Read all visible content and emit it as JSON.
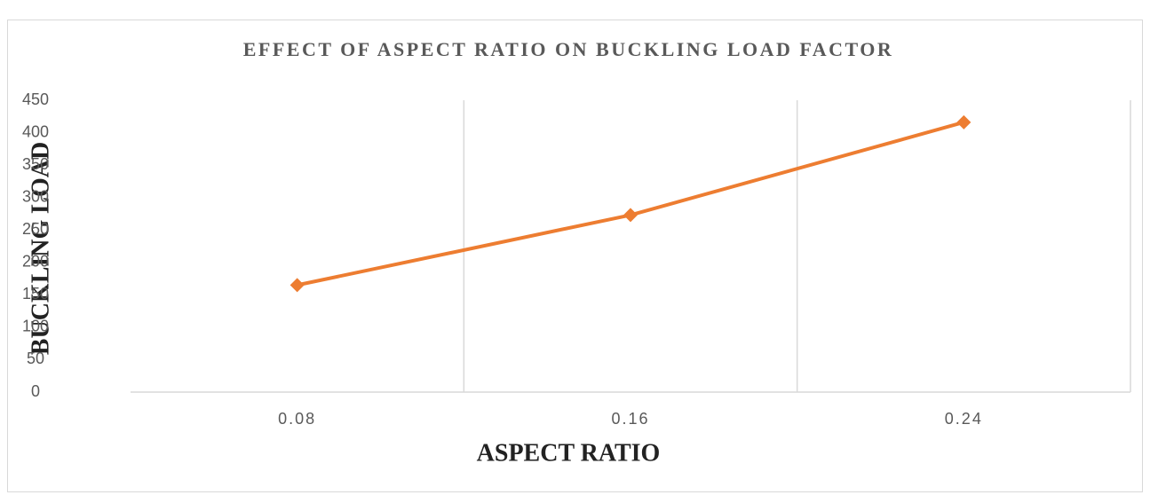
{
  "chart_data": {
    "type": "line",
    "title": "EFFECT OF ASPECT RATIO ON BUCKLING LOAD FACTOR",
    "x_label": "ASPECT RATIO",
    "y_label": "BUCKLING LOAD",
    "categories": [
      "0.08",
      "0.16",
      "0.24"
    ],
    "series": [
      {
        "name": "Buckling load",
        "color": "#ed7d31",
        "values": [
          165,
          273,
          416
        ]
      }
    ],
    "ylim": [
      0,
      450
    ],
    "yticks": [
      0,
      50,
      100,
      150,
      200,
      250,
      300,
      350,
      400,
      450
    ],
    "grid": true,
    "marker": "diamond"
  }
}
